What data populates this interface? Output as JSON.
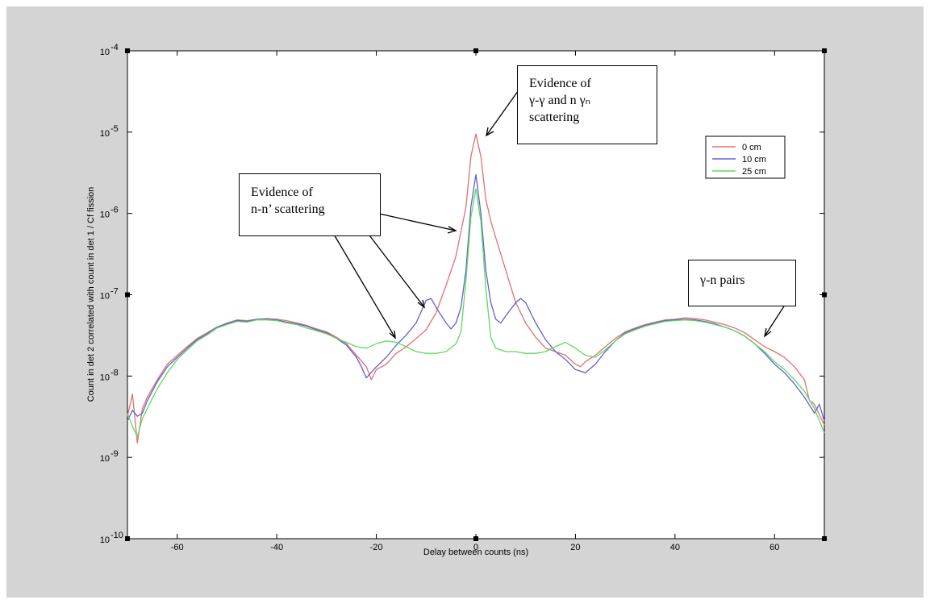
{
  "chart_data": {
    "type": "line",
    "xlabel": "Delay between counts (ns)",
    "ylabel": "Count in det 2 correlated with count in det 1 / Cf fission",
    "xlim": [
      -70,
      70
    ],
    "ylim": [
      1e-10,
      0.0001
    ],
    "yscale": "log",
    "grid": false,
    "legend_position": "top-right",
    "x_ticks": [
      -60,
      -40,
      -20,
      0,
      20,
      40,
      60
    ],
    "x_tick_labels": [
      "-60",
      "-40",
      "-20",
      "0",
      "20",
      "40",
      "60"
    ],
    "y_ticks": [
      1e-10,
      1e-09,
      1e-08,
      1e-07,
      1e-06,
      1e-05,
      0.0001
    ],
    "y_tick_base": [
      "10",
      "10",
      "10",
      "10",
      "10",
      "10",
      "10"
    ],
    "y_tick_exp": [
      "-10",
      "-9",
      "-8",
      "-7",
      "-6",
      "-5",
      "-4"
    ],
    "series": [
      {
        "name": "0 cm",
        "color": "#e07070",
        "points": [
          [
            -70,
            3.2e-09
          ],
          [
            -69,
            6e-09
          ],
          [
            -68,
            1.5e-09
          ],
          [
            -67,
            4e-09
          ],
          [
            -66,
            5.5e-09
          ],
          [
            -64,
            9e-09
          ],
          [
            -62,
            1.4e-08
          ],
          [
            -60,
            1.8e-08
          ],
          [
            -58,
            2.3e-08
          ],
          [
            -56,
            2.9e-08
          ],
          [
            -54,
            3.4e-08
          ],
          [
            -52,
            4e-08
          ],
          [
            -50,
            4.5e-08
          ],
          [
            -48,
            4.9e-08
          ],
          [
            -46,
            4.8e-08
          ],
          [
            -44,
            5e-08
          ],
          [
            -42,
            5.1e-08
          ],
          [
            -40,
            5e-08
          ],
          [
            -38,
            4.8e-08
          ],
          [
            -36,
            4.5e-08
          ],
          [
            -34,
            4.2e-08
          ],
          [
            -32,
            3.8e-08
          ],
          [
            -30,
            3.5e-08
          ],
          [
            -28,
            3e-08
          ],
          [
            -26,
            2.5e-08
          ],
          [
            -24,
            1.8e-08
          ],
          [
            -22,
            1.3e-08
          ],
          [
            -21,
            9e-09
          ],
          [
            -20,
            1.2e-08
          ],
          [
            -18,
            1.4e-08
          ],
          [
            -16,
            1.9e-08
          ],
          [
            -14,
            2.3e-08
          ],
          [
            -12,
            2.9e-08
          ],
          [
            -10,
            3.7e-08
          ],
          [
            -8,
            6e-08
          ],
          [
            -6,
            1.3e-07
          ],
          [
            -4,
            3e-07
          ],
          [
            -3,
            6e-07
          ],
          [
            -2,
            1.2e-06
          ],
          [
            -1,
            5e-06
          ],
          [
            0,
            9.5e-06
          ],
          [
            1,
            5e-06
          ],
          [
            2,
            1.5e-06
          ],
          [
            3,
            8e-07
          ],
          [
            4,
            5e-07
          ],
          [
            6,
            2e-07
          ],
          [
            8,
            8e-08
          ],
          [
            10,
            4.5e-08
          ],
          [
            12,
            3e-08
          ],
          [
            14,
            2.2e-08
          ],
          [
            16,
            2e-08
          ],
          [
            18,
            1.8e-08
          ],
          [
            20,
            1.4e-08
          ],
          [
            21,
            1.3e-08
          ],
          [
            22,
            1.5e-08
          ],
          [
            24,
            1.8e-08
          ],
          [
            26,
            2.3e-08
          ],
          [
            28,
            2.9e-08
          ],
          [
            30,
            3.5e-08
          ],
          [
            32,
            3.9e-08
          ],
          [
            34,
            4.3e-08
          ],
          [
            36,
            4.6e-08
          ],
          [
            38,
            4.9e-08
          ],
          [
            40,
            5e-08
          ],
          [
            42,
            5.2e-08
          ],
          [
            44,
            5.1e-08
          ],
          [
            46,
            4.9e-08
          ],
          [
            48,
            4.6e-08
          ],
          [
            50,
            4.3e-08
          ],
          [
            52,
            3.9e-08
          ],
          [
            54,
            3.4e-08
          ],
          [
            56,
            2.8e-08
          ],
          [
            58,
            2.3e-08
          ],
          [
            60,
            2e-08
          ],
          [
            62,
            1.7e-08
          ],
          [
            64,
            1.3e-08
          ],
          [
            66,
            9e-09
          ],
          [
            67,
            5e-09
          ],
          [
            68,
            4.5e-09
          ],
          [
            70,
            2.5e-09
          ]
        ]
      },
      {
        "name": "10 cm",
        "color": "#6060d0",
        "points": [
          [
            -70,
            2.8e-09
          ],
          [
            -69,
            3.8e-09
          ],
          [
            -68,
            3.2e-09
          ],
          [
            -67,
            3.5e-09
          ],
          [
            -66,
            5e-09
          ],
          [
            -64,
            8.5e-09
          ],
          [
            -62,
            1.3e-08
          ],
          [
            -60,
            1.7e-08
          ],
          [
            -58,
            2.2e-08
          ],
          [
            -56,
            2.8e-08
          ],
          [
            -54,
            3.3e-08
          ],
          [
            -52,
            4e-08
          ],
          [
            -50,
            4.4e-08
          ],
          [
            -48,
            4.8e-08
          ],
          [
            -46,
            4.7e-08
          ],
          [
            -44,
            5e-08
          ],
          [
            -42,
            5e-08
          ],
          [
            -40,
            4.9e-08
          ],
          [
            -38,
            4.6e-08
          ],
          [
            -36,
            4.4e-08
          ],
          [
            -34,
            4.1e-08
          ],
          [
            -32,
            3.7e-08
          ],
          [
            -30,
            3.4e-08
          ],
          [
            -28,
            2.9e-08
          ],
          [
            -26,
            2.4e-08
          ],
          [
            -24,
            1.7e-08
          ],
          [
            -23,
            1.3e-08
          ],
          [
            -22,
            9.5e-09
          ],
          [
            -20,
            1.3e-08
          ],
          [
            -18,
            1.7e-08
          ],
          [
            -16,
            2.4e-08
          ],
          [
            -14,
            3.2e-08
          ],
          [
            -12,
            4.5e-08
          ],
          [
            -10,
            8.5e-08
          ],
          [
            -9,
            9e-08
          ],
          [
            -8,
            7e-08
          ],
          [
            -6,
            4.5e-08
          ],
          [
            -5,
            3.8e-08
          ],
          [
            -4,
            4.5e-08
          ],
          [
            -3,
            7e-08
          ],
          [
            -2,
            2e-07
          ],
          [
            -1,
            1.2e-06
          ],
          [
            0,
            3e-06
          ],
          [
            1,
            1e-06
          ],
          [
            2,
            2e-07
          ],
          [
            3,
            8e-08
          ],
          [
            4,
            5e-08
          ],
          [
            5,
            4.5e-08
          ],
          [
            6,
            5.5e-08
          ],
          [
            8,
            8e-08
          ],
          [
            9,
            9e-08
          ],
          [
            10,
            8e-08
          ],
          [
            12,
            4.5e-08
          ],
          [
            14,
            2.8e-08
          ],
          [
            16,
            2e-08
          ],
          [
            18,
            1.6e-08
          ],
          [
            20,
            1.2e-08
          ],
          [
            22,
            1.1e-08
          ],
          [
            24,
            1.4e-08
          ],
          [
            26,
            2e-08
          ],
          [
            28,
            2.7e-08
          ],
          [
            30,
            3.4e-08
          ],
          [
            32,
            3.8e-08
          ],
          [
            34,
            4.2e-08
          ],
          [
            36,
            4.5e-08
          ],
          [
            38,
            4.8e-08
          ],
          [
            40,
            4.9e-08
          ],
          [
            42,
            5e-08
          ],
          [
            44,
            4.9e-08
          ],
          [
            46,
            4.7e-08
          ],
          [
            48,
            4.4e-08
          ],
          [
            50,
            4e-08
          ],
          [
            52,
            3.6e-08
          ],
          [
            54,
            3.1e-08
          ],
          [
            56,
            2.5e-08
          ],
          [
            58,
            1.9e-08
          ],
          [
            60,
            1.4e-08
          ],
          [
            62,
            1.1e-08
          ],
          [
            64,
            8e-09
          ],
          [
            66,
            5.5e-09
          ],
          [
            68,
            3.5e-09
          ],
          [
            69,
            4.5e-09
          ],
          [
            70,
            2.8e-09
          ]
        ]
      },
      {
        "name": "25 cm",
        "color": "#60d860",
        "points": [
          [
            -70,
            3.5e-09
          ],
          [
            -69,
            2.4e-09
          ],
          [
            -68,
            1.8e-09
          ],
          [
            -67,
            3e-09
          ],
          [
            -66,
            4e-09
          ],
          [
            -64,
            7e-09
          ],
          [
            -62,
            1.1e-08
          ],
          [
            -60,
            1.6e-08
          ],
          [
            -58,
            2.1e-08
          ],
          [
            -56,
            2.7e-08
          ],
          [
            -54,
            3.2e-08
          ],
          [
            -52,
            3.9e-08
          ],
          [
            -50,
            4.3e-08
          ],
          [
            -48,
            4.7e-08
          ],
          [
            -46,
            4.6e-08
          ],
          [
            -44,
            4.9e-08
          ],
          [
            -42,
            4.9e-08
          ],
          [
            -40,
            4.8e-08
          ],
          [
            -38,
            4.5e-08
          ],
          [
            -36,
            4.3e-08
          ],
          [
            -34,
            3.9e-08
          ],
          [
            -32,
            3.6e-08
          ],
          [
            -30,
            3.3e-08
          ],
          [
            -28,
            2.9e-08
          ],
          [
            -26,
            2.6e-08
          ],
          [
            -24,
            2.3e-08
          ],
          [
            -22,
            2.2e-08
          ],
          [
            -20,
            2.5e-08
          ],
          [
            -18,
            2.7e-08
          ],
          [
            -16,
            2.6e-08
          ],
          [
            -14,
            2.3e-08
          ],
          [
            -12,
            2e-08
          ],
          [
            -10,
            1.9e-08
          ],
          [
            -8,
            1.9e-08
          ],
          [
            -6,
            2e-08
          ],
          [
            -4,
            2.5e-08
          ],
          [
            -3,
            3.5e-08
          ],
          [
            -2,
            1.5e-07
          ],
          [
            -1,
            9e-07
          ],
          [
            0,
            2e-06
          ],
          [
            1,
            8e-07
          ],
          [
            2,
            1.2e-07
          ],
          [
            3,
            3e-08
          ],
          [
            4,
            2.2e-08
          ],
          [
            6,
            2e-08
          ],
          [
            8,
            2e-08
          ],
          [
            10,
            1.9e-08
          ],
          [
            12,
            1.9e-08
          ],
          [
            14,
            2e-08
          ],
          [
            16,
            2.3e-08
          ],
          [
            18,
            2.6e-08
          ],
          [
            20,
            2.2e-08
          ],
          [
            22,
            1.8e-08
          ],
          [
            24,
            1.7e-08
          ],
          [
            26,
            2.1e-08
          ],
          [
            28,
            2.7e-08
          ],
          [
            30,
            3.3e-08
          ],
          [
            32,
            3.7e-08
          ],
          [
            34,
            4.1e-08
          ],
          [
            36,
            4.4e-08
          ],
          [
            38,
            4.7e-08
          ],
          [
            40,
            4.8e-08
          ],
          [
            42,
            4.9e-08
          ],
          [
            44,
            4.8e-08
          ],
          [
            46,
            4.6e-08
          ],
          [
            48,
            4.3e-08
          ],
          [
            50,
            4e-08
          ],
          [
            52,
            3.6e-08
          ],
          [
            54,
            3.1e-08
          ],
          [
            56,
            2.5e-08
          ],
          [
            58,
            2e-08
          ],
          [
            60,
            1.5e-08
          ],
          [
            62,
            1.2e-08
          ],
          [
            64,
            9e-09
          ],
          [
            66,
            6.5e-09
          ],
          [
            68,
            4e-09
          ],
          [
            70,
            2e-09
          ]
        ]
      }
    ],
    "annotations": [
      {
        "id": "gg",
        "lines": [
          "Evidence of",
          "γ-γ and n γₙ",
          "scattering"
        ]
      },
      {
        "id": "nn",
        "lines": [
          "Evidence of",
          "n-n’ scattering"
        ]
      },
      {
        "id": "gn",
        "lines": [
          "γ-n pairs"
        ]
      }
    ]
  }
}
